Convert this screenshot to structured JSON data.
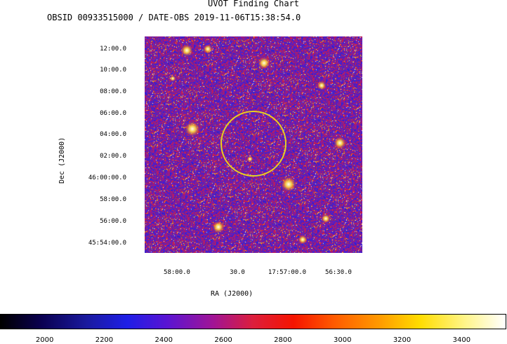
{
  "header": {
    "title": "UVOT Finding Chart",
    "subtitle": "OBSID 00933515000 / DATE-OBS 2019-11-06T15:38:54.0"
  },
  "chart_data": {
    "type": "heatmap",
    "title": "UVOT Finding Chart",
    "subtitle": "OBSID 00933515000 / DATE-OBS 2019-11-06T15:38:54.0",
    "xlabel": "RA (J2000)",
    "ylabel": "Dec (J2000)",
    "x_ticks": [
      "58:00.0",
      "30.0",
      "17:57:00.0",
      "56:30.0"
    ],
    "y_ticks": [
      "12:00.0",
      "10:00.0",
      "08:00.0",
      "06:00.0",
      "04:00.0",
      "02:00.0",
      "46:00:00.0",
      "58:00.0",
      "56:00.0",
      "45:54:00.0"
    ],
    "colorbar": {
      "ticks": [
        "2000",
        "2200",
        "2400",
        "2600",
        "2800",
        "3000",
        "3200",
        "3400"
      ],
      "range": [
        1850,
        3550
      ],
      "colormap": "black-blue-red-yellow-white"
    },
    "annotations": [
      {
        "type": "circle",
        "color": "#e8d020"
      }
    ]
  }
}
